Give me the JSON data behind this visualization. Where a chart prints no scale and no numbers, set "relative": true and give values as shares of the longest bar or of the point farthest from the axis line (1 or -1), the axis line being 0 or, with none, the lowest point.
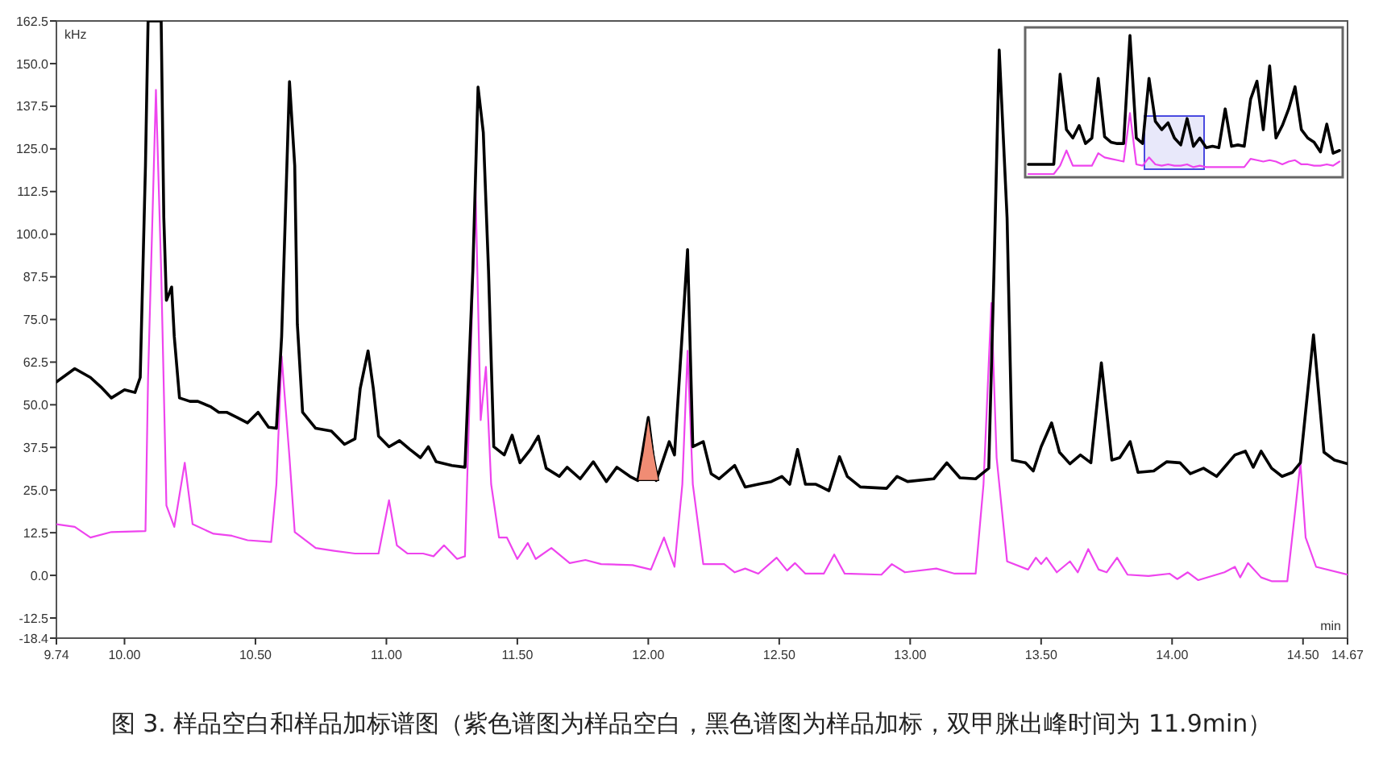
{
  "chart_data": [
    {
      "type": "line",
      "xlabel": "min",
      "ylabel": "kHz",
      "annotations": [
        "图 3. 样品空白和样品加标谱图（紫色谱图为样品空白，黑色谱图为样品加标，双甲脒出峰时间为 11.9min）"
      ],
      "xlim": [
        9.74,
        14.67
      ],
      "ylim": [
        -18.4,
        162.5
      ],
      "xticks": [
        9.74,
        {
          "value": 10,
          "label": "10.00"
        },
        {
          "value": 10.5,
          "label": "10.50"
        },
        {
          "value": 11,
          "label": "11.00"
        },
        {
          "value": 11.5,
          "label": "11.50"
        },
        {
          "value": 12,
          "label": "12.00"
        },
        {
          "value": 12.5,
          "label": "12.50"
        },
        {
          "value": 13,
          "label": "13.00"
        },
        {
          "value": 13.5,
          "label": "13.50"
        },
        {
          "value": 14,
          "label": "14.00"
        },
        {
          "value": 14.5,
          "label": "14.50"
        },
        14.67
      ],
      "yticks": [
        -18.4,
        -12.5,
        {
          "value": 0,
          "label": "0.0"
        },
        12.5,
        {
          "value": 25,
          "label": "25.0"
        },
        37.5,
        {
          "value": 50,
          "label": "50.0"
        },
        62.5,
        {
          "value": 75,
          "label": "75.0"
        },
        87.5,
        {
          "value": 100,
          "label": "100.0"
        },
        112.5,
        {
          "value": 125,
          "label": "125.0"
        },
        137.5,
        {
          "value": 150,
          "label": "150.0"
        },
        162.5
      ],
      "series": [
        {
          "color": "#ee44ee",
          "x": [
            9.74,
            9.81,
            9.87,
            9.95,
            10.08,
            10.09,
            10.12,
            10.14,
            10.16,
            10.19,
            10.23,
            10.26,
            10.34,
            10.41,
            10.47,
            10.56,
            10.58,
            10.6,
            10.63,
            10.65,
            10.73,
            10.8,
            10.88,
            10.97,
            11.01,
            11.04,
            11.08,
            11.14,
            11.18,
            11.22,
            11.27,
            11.3,
            11.32,
            11.34,
            11.36,
            11.38,
            11.4,
            11.43,
            11.46,
            11.5,
            11.54,
            11.57,
            11.63,
            11.7,
            11.76,
            11.82,
            11.94,
            12.01,
            12.06,
            12.1,
            12.13,
            12.15,
            12.17,
            12.21,
            12.29,
            12.33,
            12.37,
            12.42,
            12.49,
            12.53,
            12.56,
            12.6,
            12.67,
            12.71,
            12.75,
            12.89,
            12.93,
            12.98,
            13.1,
            13.17,
            13.25,
            13.28,
            13.31,
            13.33,
            13.37,
            13.45,
            13.48,
            13.5,
            13.52,
            13.56,
            13.61,
            13.64,
            13.68,
            13.72,
            13.75,
            13.79,
            13.83,
            13.91,
            13.99,
            14.02,
            14.06,
            14.1,
            14.2,
            14.24,
            14.26,
            14.29,
            14.34,
            14.38,
            14.44,
            14.47,
            14.49,
            14.51,
            14.55,
            14.67
          ],
          "values": [
            15,
            14.2,
            11.1,
            12.7,
            13,
            58,
            142.3,
            89.2,
            20.5,
            14.2,
            33,
            15,
            12.2,
            11.6,
            10.3,
            9.8,
            26.7,
            64.2,
            34.5,
            12.7,
            8,
            7.2,
            6.4,
            6.4,
            22,
            8.8,
            6.4,
            6.4,
            5.6,
            8.8,
            4.8,
            5.6,
            58,
            114.2,
            45.5,
            61.1,
            26.7,
            11.1,
            11.1,
            4.8,
            9.5,
            4.8,
            8,
            3.6,
            4.5,
            3.3,
            3,
            1.7,
            11.1,
            2.5,
            26.7,
            65.8,
            26.7,
            3.3,
            3.3,
            0.9,
            2,
            0.5,
            5.2,
            1.4,
            3.6,
            0.5,
            0.5,
            6.1,
            0.5,
            0.2,
            3.3,
            0.9,
            2,
            0.5,
            0.5,
            26.7,
            79.8,
            34.5,
            4.1,
            1.7,
            5.2,
            3.3,
            5.2,
            0.9,
            4.1,
            0.9,
            7.7,
            1.7,
            0.9,
            5.2,
            0.2,
            -0.2,
            0.5,
            -1.1,
            0.9,
            -1.4,
            0.9,
            2.5,
            -0.6,
            3.6,
            -0.6,
            -1.7,
            -1.7,
            18.9,
            33,
            11.1,
            2.5,
            0.2
          ]
        },
        {
          "color": "#000000",
          "x": [
            9.74,
            9.81,
            9.87,
            9.91,
            9.95,
            10,
            10.04,
            10.06,
            10.08,
            10.09,
            10.14,
            10.15,
            10.16,
            10.18,
            10.19,
            10.21,
            10.25,
            10.28,
            10.33,
            10.36,
            10.39,
            10.43,
            10.47,
            10.51,
            10.55,
            10.58,
            10.6,
            10.62,
            10.63,
            10.65,
            10.66,
            10.68,
            10.73,
            10.79,
            10.84,
            10.88,
            10.9,
            10.93,
            10.95,
            10.97,
            11.01,
            11.05,
            11.09,
            11.13,
            11.16,
            11.19,
            11.25,
            11.3,
            11.33,
            11.35,
            11.37,
            11.39,
            11.41,
            11.45,
            11.48,
            11.51,
            11.55,
            11.58,
            11.61,
            11.66,
            11.69,
            11.74,
            11.79,
            11.84,
            11.88,
            11.93,
            11.96,
            12,
            12.03,
            12.08,
            12.1,
            12.15,
            12.17,
            12.21,
            12.24,
            12.27,
            12.33,
            12.37,
            12.42,
            12.47,
            12.51,
            12.54,
            12.57,
            12.6,
            12.64,
            12.69,
            12.73,
            12.76,
            12.81,
            12.91,
            12.95,
            12.99,
            13.09,
            13.14,
            13.19,
            13.25,
            13.3,
            13.32,
            13.34,
            13.37,
            13.39,
            13.44,
            13.47,
            13.5,
            13.54,
            13.57,
            13.61,
            13.65,
            13.69,
            13.73,
            13.77,
            13.8,
            13.84,
            13.87,
            13.93,
            13.98,
            14.03,
            14.07,
            14.12,
            14.17,
            14.24,
            14.28,
            14.31,
            14.34,
            14.38,
            14.42,
            14.46,
            14.49,
            14.54,
            14.58,
            14.62,
            14.67
          ],
          "values": [
            56.7,
            60.6,
            58,
            55.2,
            52,
            54.4,
            53.6,
            58,
            120,
            162.5,
            162.5,
            105,
            80.6,
            84.5,
            70,
            52,
            51,
            51,
            49.4,
            47.8,
            47.8,
            46.3,
            44.7,
            47.8,
            43.4,
            43.1,
            70,
            120,
            144.7,
            120,
            73.6,
            47.8,
            43.1,
            42.3,
            38.4,
            40,
            54.8,
            65.8,
            54.8,
            40.8,
            37.7,
            39.5,
            36.9,
            34.5,
            37.7,
            33.3,
            32.2,
            31.7,
            89.2,
            143.1,
            129.8,
            89.2,
            37.7,
            35.3,
            41.1,
            33,
            36.9,
            40.8,
            31.4,
            29,
            31.7,
            28.3,
            33.3,
            27.5,
            31.7,
            29,
            27.8,
            46.3,
            27.8,
            39.2,
            35.3,
            95.5,
            37.7,
            39.2,
            29.8,
            28.3,
            32.2,
            25.9,
            26.7,
            27.5,
            29,
            26.7,
            36.9,
            26.7,
            26.7,
            24.8,
            34.8,
            29,
            25.9,
            25.5,
            29,
            27.5,
            28.3,
            33,
            28.6,
            28.3,
            31.4,
            89.2,
            154,
            104.8,
            33.8,
            33,
            30.6,
            37.7,
            44.7,
            36.1,
            32.7,
            35.3,
            33,
            62.3,
            33.8,
            34.5,
            39.2,
            30.2,
            30.6,
            33.3,
            33,
            29.8,
            31.4,
            29,
            35.3,
            36.4,
            31.7,
            36.4,
            31.4,
            29,
            30.2,
            33,
            70.5,
            36.1,
            33.8,
            32.7
          ]
        },
        {
          "type": "area",
          "color": "#f08c74",
          "x": [
            11.96,
            11.98,
            12,
            12.02,
            12.04
          ],
          "values": [
            27.8,
            36,
            46.3,
            36,
            27.8
          ]
        }
      ]
    },
    {
      "type": "line",
      "relative": true,
      "categories": [
        null,
        null,
        null,
        null,
        null,
        null,
        null,
        null,
        null,
        null,
        null,
        null,
        null,
        null,
        null,
        null,
        null,
        null,
        null,
        null,
        null,
        null,
        null,
        null,
        null,
        null,
        null,
        null,
        null,
        null,
        null,
        null,
        null,
        null,
        null,
        null,
        null,
        null,
        null,
        null,
        null,
        null,
        null,
        null,
        null,
        null,
        null,
        null,
        null,
        null
      ],
      "series": [
        {
          "color": "#ee44ee",
          "values": [
            0,
            0,
            0,
            0,
            0,
            0.06,
            0.17,
            0.06,
            0.06,
            0.06,
            0.06,
            0.15,
            0.12,
            0.11,
            0.1,
            0.09,
            0.44,
            0.07,
            0.06,
            0.12,
            0.07,
            0.06,
            0.07,
            0.06,
            0.06,
            0.07,
            0.05,
            0.06,
            0.05,
            0.05,
            0.05,
            0.05,
            0.05,
            0.05,
            0.05,
            0.11,
            0.1,
            0.09,
            0.1,
            0.09,
            0.07,
            0.09,
            0.1,
            0.07,
            0.07,
            0.06,
            0.06,
            0.07,
            0.06,
            0.09
          ]
        },
        {
          "color": "#000000",
          "values": [
            0.07,
            0.07,
            0.07,
            0.07,
            0.07,
            0.72,
            0.32,
            0.26,
            0.35,
            0.22,
            0.26,
            0.69,
            0.27,
            0.23,
            0.22,
            0.22,
            1,
            0.26,
            0.22,
            0.69,
            0.38,
            0.32,
            0.37,
            0.26,
            0.21,
            0.4,
            0.2,
            0.26,
            0.19,
            0.2,
            0.19,
            0.47,
            0.2,
            0.21,
            0.2,
            0.54,
            0.67,
            0.32,
            0.78,
            0.26,
            0.35,
            0.47,
            0.63,
            0.32,
            0.26,
            0.23,
            0.16,
            0.36,
            0.15,
            0.17
          ]
        }
      ]
    }
  ]
}
